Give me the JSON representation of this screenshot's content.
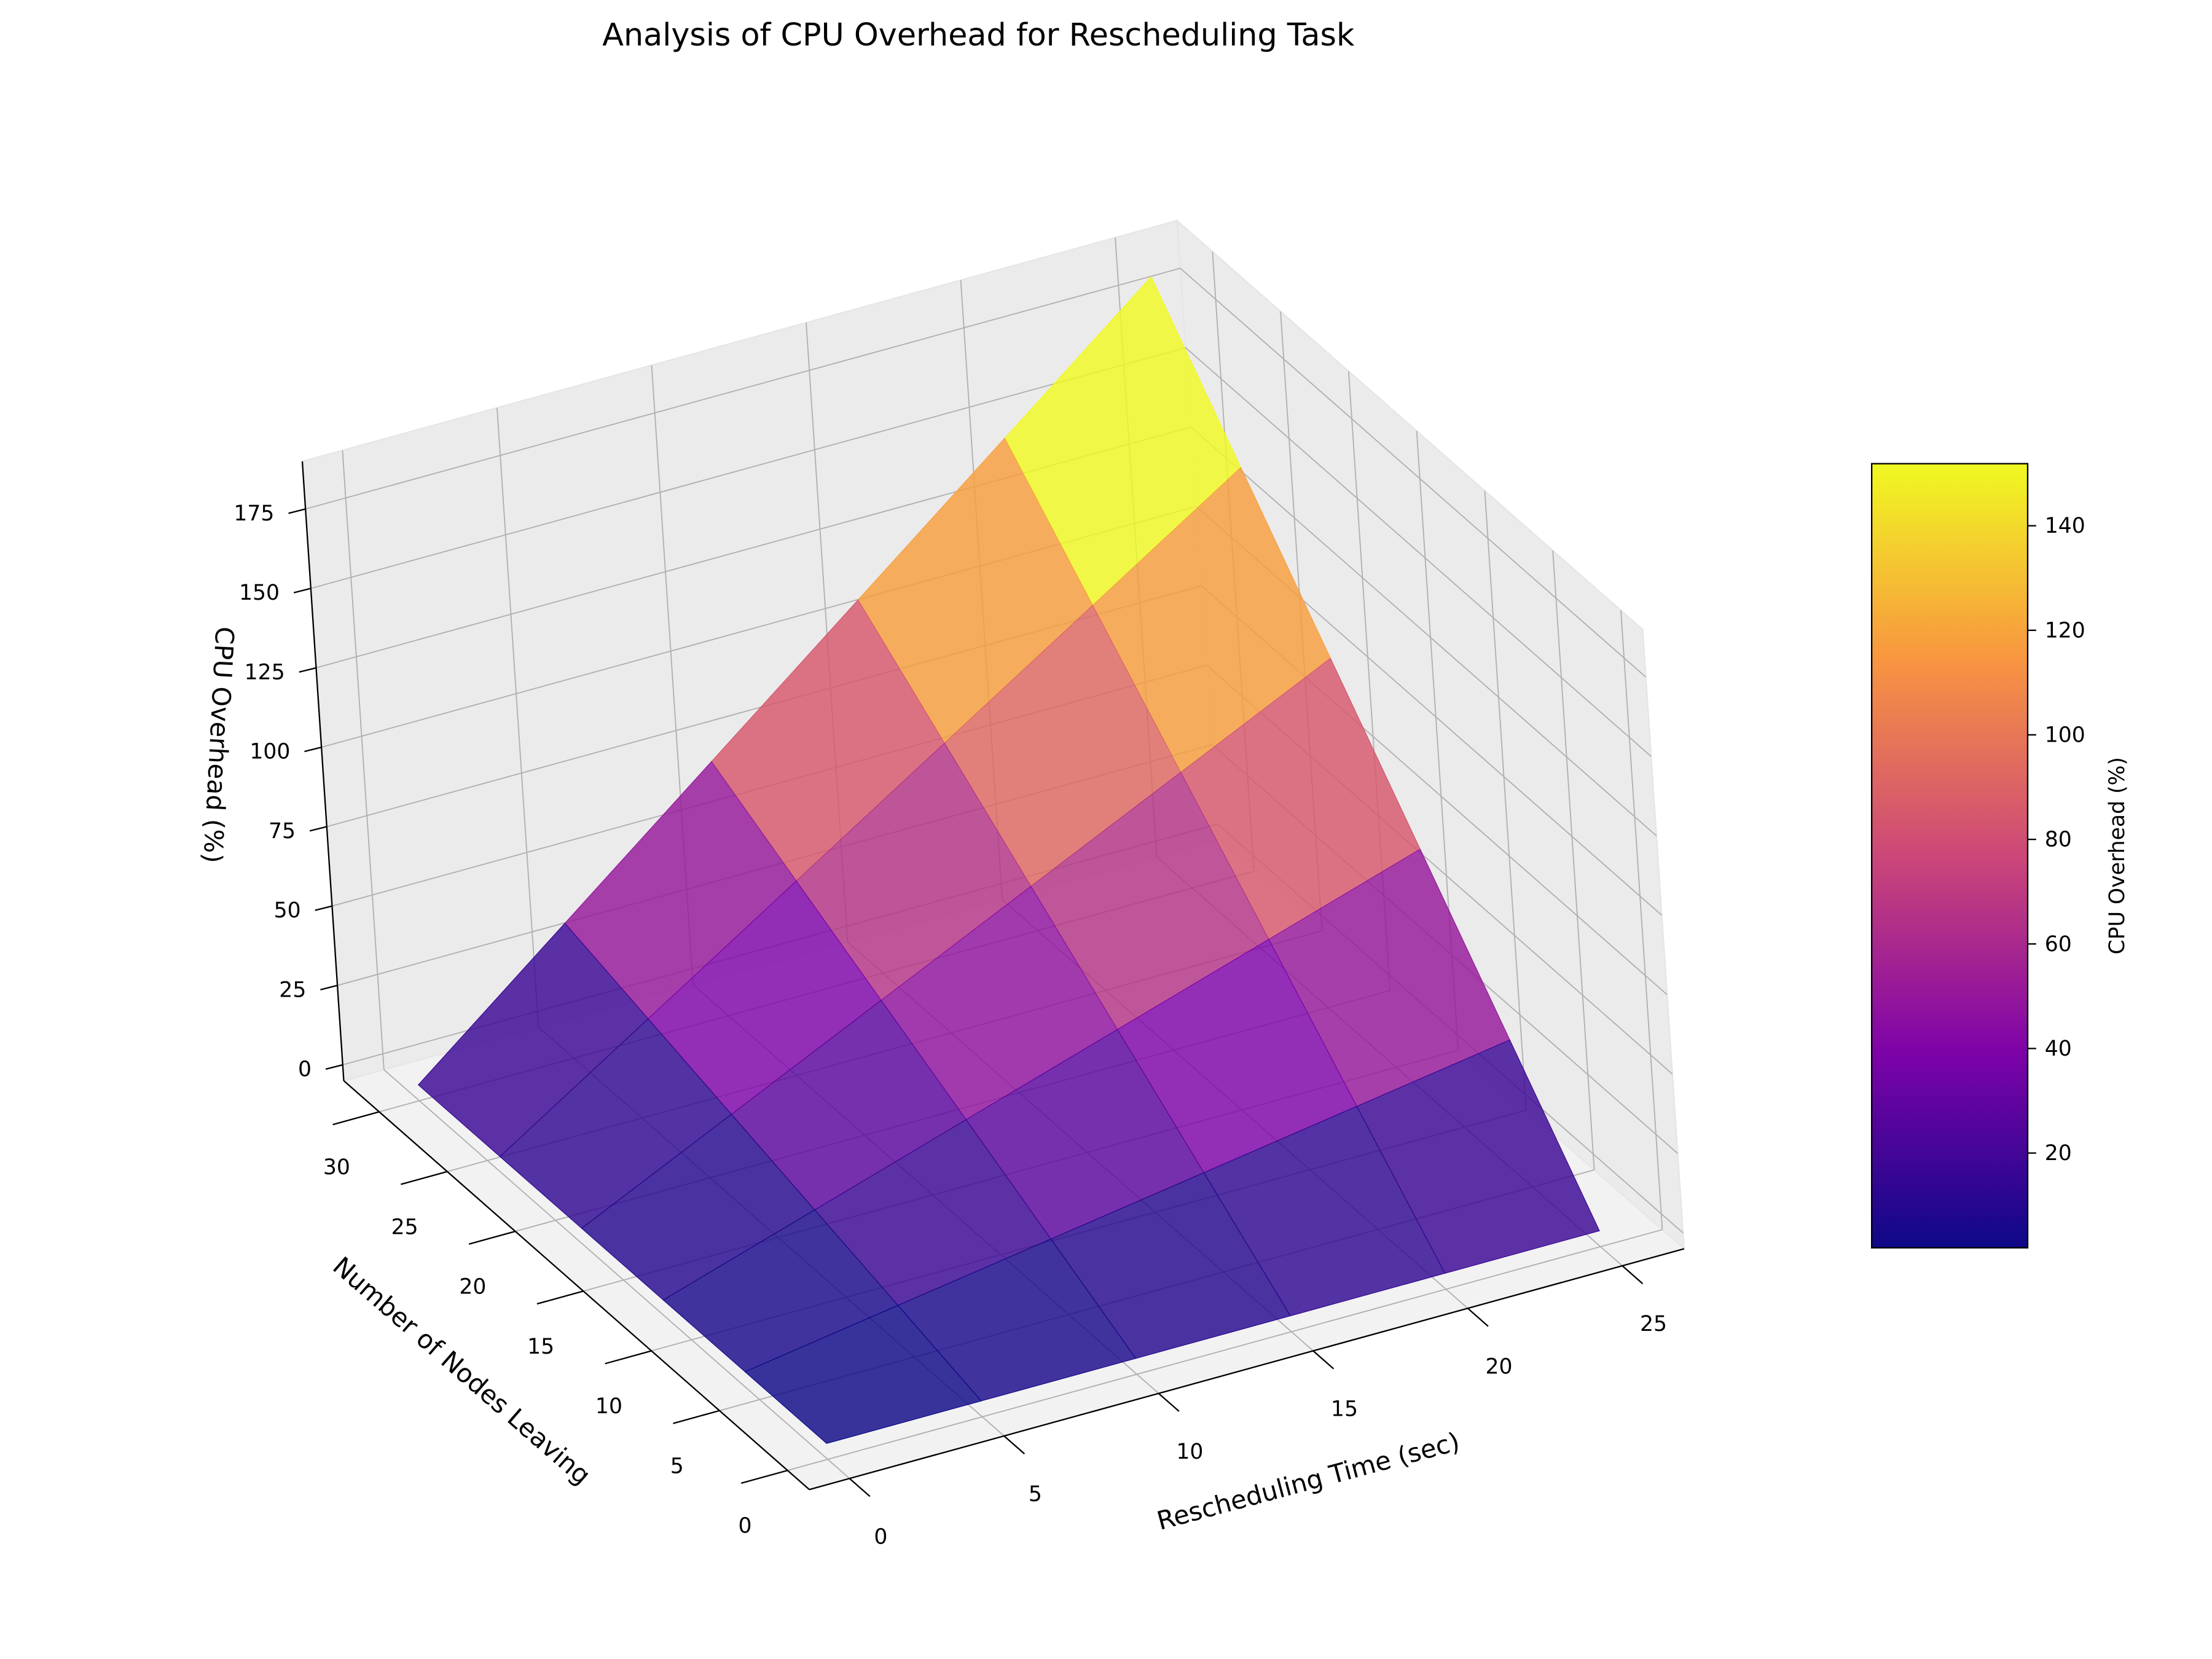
{
  "chart_data": {
    "type": "surface",
    "title": "Analysis of CPU Overhead for Rescheduling Task",
    "xlabel": "Rescheduling Time (sec)",
    "ylabel": "Number of Nodes Leaving",
    "zlabel": "CPU Overhead (%)",
    "x": [
      0,
      5,
      10,
      15,
      20,
      25
    ],
    "y": [
      0,
      6,
      12,
      18,
      24,
      30
    ],
    "z": [
      [
        0,
        0,
        0,
        0,
        0,
        0
      ],
      [
        0,
        7.5,
        15,
        22.5,
        30,
        37.5
      ],
      [
        0,
        15,
        30,
        45,
        60,
        75
      ],
      [
        0,
        22.5,
        45,
        67.5,
        90,
        112.5
      ],
      [
        0,
        30,
        60,
        90,
        120,
        150
      ],
      [
        0,
        37.5,
        75,
        112.5,
        150,
        187.5
      ]
    ],
    "colormap": "plasma",
    "xlim": [
      -1.3,
      27
    ],
    "ylim": [
      -1.6,
      32.6
    ],
    "zlim": [
      -5,
      190
    ],
    "xticks": [
      0,
      5,
      10,
      15,
      20,
      25
    ],
    "yticks": [
      0,
      5,
      10,
      15,
      20,
      25,
      30
    ],
    "zticks": [
      0,
      25,
      50,
      75,
      100,
      125,
      150,
      175
    ],
    "grid": true,
    "colorbar": {
      "label": "CPU Overhead (%)",
      "ticks": [
        20,
        40,
        60,
        80,
        100,
        120,
        140
      ]
    }
  }
}
